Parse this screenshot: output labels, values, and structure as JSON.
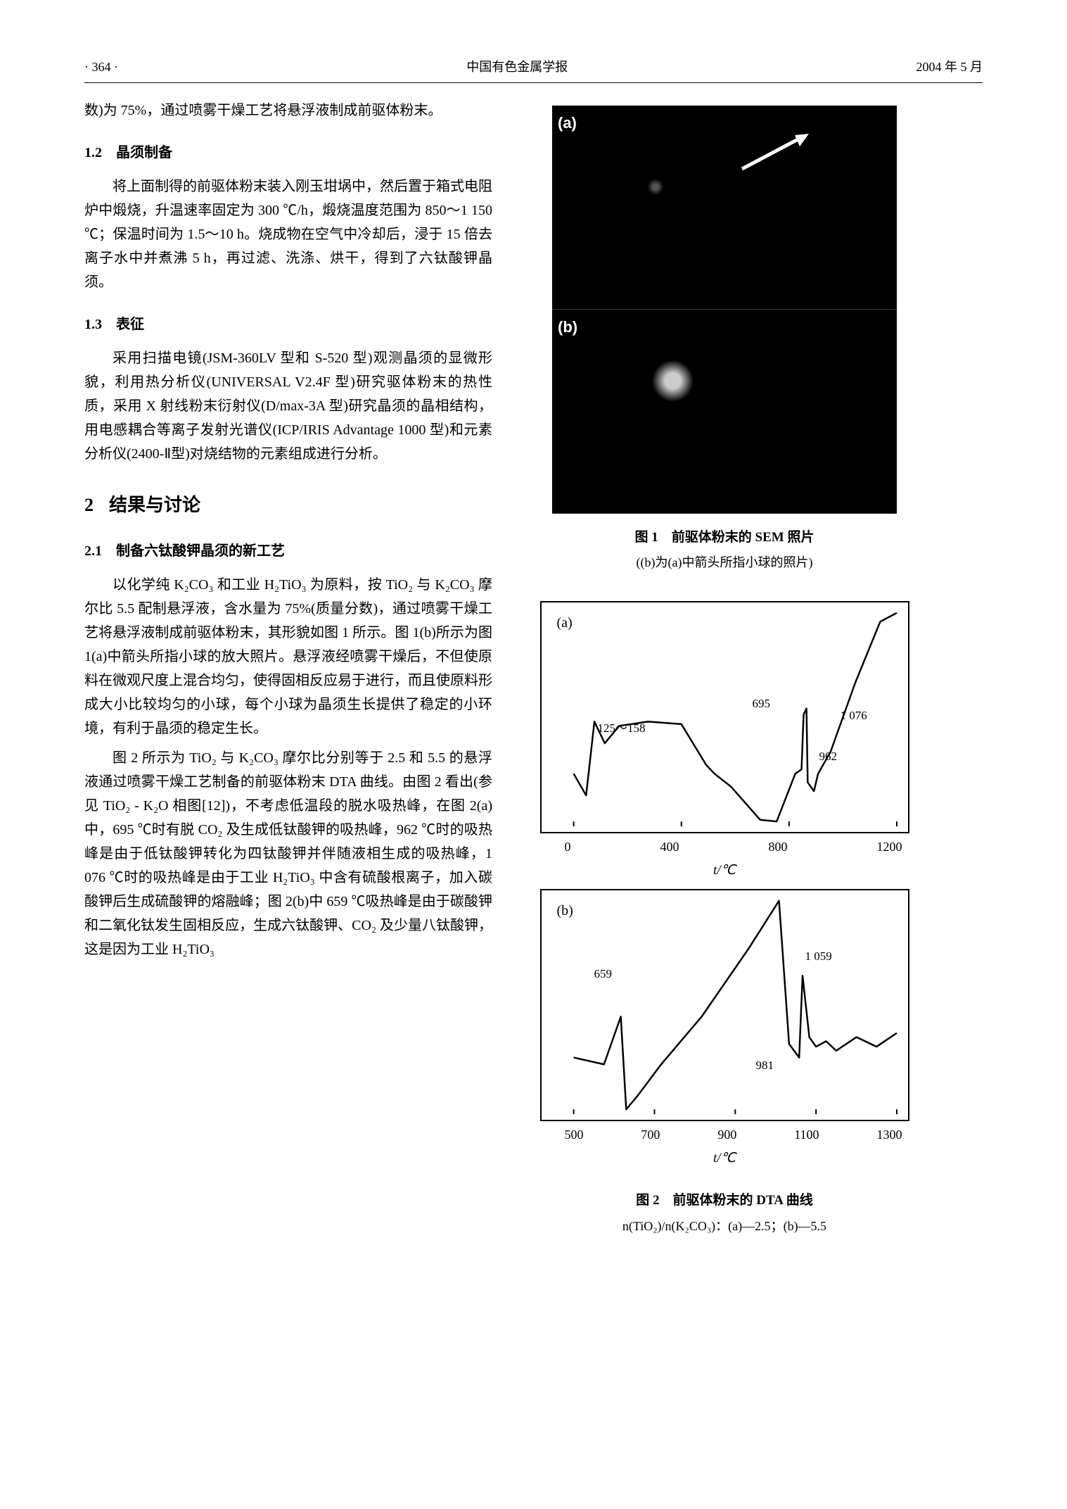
{
  "header": {
    "page_number": "· 364 ·",
    "journal": "中国有色金属学报",
    "date": "2004 年 5 月"
  },
  "intro_line": "数)为 75%，通过喷雾干燥工艺将悬浮液制成前驱体粉末。",
  "s1_2": {
    "title": "1.2　晶须制备",
    "p1": "将上面制得的前驱体粉末装入刚玉坩埚中，然后置于箱式电阻炉中煅烧，升温速率固定为 300 ℃/h，煅烧温度范围为 850～1 150 ℃；保温时间为 1.5～10 h。烧成物在空气中冷却后，浸于 15 倍去离子水中并煮沸 5 h，再过滤、洗涤、烘干，得到了六钛酸钾晶须。"
  },
  "s1_3": {
    "title": "1.3　表征",
    "p1": "采用扫描电镜(JSM-360LV 型和 S-520 型)观测晶须的显微形貌，利用热分析仪(UNIVERSAL V2.4F 型)研究驱体粉末的热性质，采用 X 射线粉末衍射仪(D/max-3A 型)研究晶须的晶相结构，用电感耦合等离子发射光谱仪(ICP/IRIS Advantage 1000 型)和元素分析仪(2400-Ⅱ型)对烧结物的元素组成进行分析。"
  },
  "s2": {
    "title_num": "2",
    "title_text": "结果与讨论"
  },
  "s2_1": {
    "title": "2.1　制备六钛酸钾晶须的新工艺",
    "p1": "以化学纯 K₂CO₃ 和工业 H₂TiO₃ 为原料，按 TiO₂ 与 K₂CO₃ 摩尔比 5.5 配制悬浮液，含水量为 75%(质量分数)，通过喷雾干燥工艺将悬浮液制成前驱体粉末，其形貌如图 1 所示。图 1(b)所示为图 1(a)中箭头所指小球的放大照片。悬浮液经喷雾干燥后，不但使原料在微观尺度上混合均匀，使得固相反应易于进行，而且使原料形成大小比较均匀的小球，每个小球为晶须生长提供了稳定的小环境，有利于晶须的稳定生长。",
    "p2": "图 2 所示为 TiO₂ 与 K₂CO₃ 摩尔比分别等于 2.5 和 5.5 的悬浮液通过喷雾干燥工艺制备的前驱体粉末 DTA 曲线。由图 2 看出(参见 TiO₂ - K₂O 相图[12])，不考虑低温段的脱水吸热峰，在图 2(a)中，695 ℃时有脱 CO₂ 及生成低钛酸钾的吸热峰，962 ℃时的吸热峰是由于低钛酸钾转化为四钛酸钾并伴随液相生成的吸热峰，1 076 ℃时的吸热峰是由于工业 H₂TiO₃ 中含有硫酸根离子，加入碳酸钾后生成硫酸钾的熔融峰；图 2(b)中 659 ℃吸热峰是由于碳酸钾和二氧化钛发生固相反应，生成六钛酸钾、CO₂ 及少量八钛酸钾，这是因为工业 H₂TiO₃"
  },
  "fig1": {
    "label_a": "(a)",
    "label_b": "(b)",
    "caption": "图 1　前驱体粉末的 SEM 照片",
    "subcaption": "((b)为(a)中箭头所指小球的照片)"
  },
  "fig2": {
    "panel_a": {
      "label": "(a)",
      "xlim": [
        0,
        1200
      ],
      "xticks": [
        0,
        400,
        800,
        1200
      ],
      "peaks": {
        "p1": "125～158",
        "p2": "695",
        "p3": "1 076",
        "p4": "962"
      },
      "line_color": "#000000",
      "line_width": 2.5,
      "background": "#ffffff",
      "curve": [
        [
          20,
          115
        ],
        [
          50,
          90
        ],
        [
          70,
          175
        ],
        [
          95,
          150
        ],
        [
          130,
          170
        ],
        [
          200,
          175
        ],
        [
          280,
          172
        ],
        [
          340,
          125
        ],
        [
          360,
          115
        ],
        [
          400,
          100
        ],
        [
          470,
          62
        ],
        [
          510,
          60
        ],
        [
          555,
          115
        ],
        [
          570,
          120
        ],
        [
          575,
          183
        ],
        [
          582,
          190
        ],
        [
          585,
          105
        ],
        [
          600,
          95
        ],
        [
          610,
          115
        ],
        [
          640,
          140
        ],
        [
          700,
          220
        ],
        [
          760,
          290
        ],
        [
          800,
          300
        ]
      ]
    },
    "panel_b": {
      "label": "(b)",
      "xlim": [
        500,
        1300
      ],
      "xticks": [
        500,
        700,
        900,
        1100,
        1300
      ],
      "peaks": {
        "p1": "659",
        "p2": "1 059",
        "p3": "981"
      },
      "line_color": "#000000",
      "line_width": 2.5,
      "background": "#ffffff",
      "curve": [
        [
          30,
          100
        ],
        [
          75,
          95
        ],
        [
          100,
          130
        ],
        [
          108,
          62
        ],
        [
          125,
          72
        ],
        [
          160,
          95
        ],
        [
          220,
          130
        ],
        [
          290,
          180
        ],
        [
          335,
          215
        ],
        [
          350,
          110
        ],
        [
          365,
          100
        ],
        [
          370,
          160
        ],
        [
          380,
          115
        ],
        [
          390,
          108
        ],
        [
          405,
          112
        ],
        [
          420,
          105
        ],
        [
          450,
          115
        ],
        [
          480,
          108
        ],
        [
          510,
          118
        ]
      ]
    },
    "axis_label": "t/℃",
    "caption": "图 2　前驱体粉末的 DTA 曲线",
    "subcaption": "n(TiO₂)/n(K₂CO₃)：(a)—2.5；(b)—5.5"
  }
}
